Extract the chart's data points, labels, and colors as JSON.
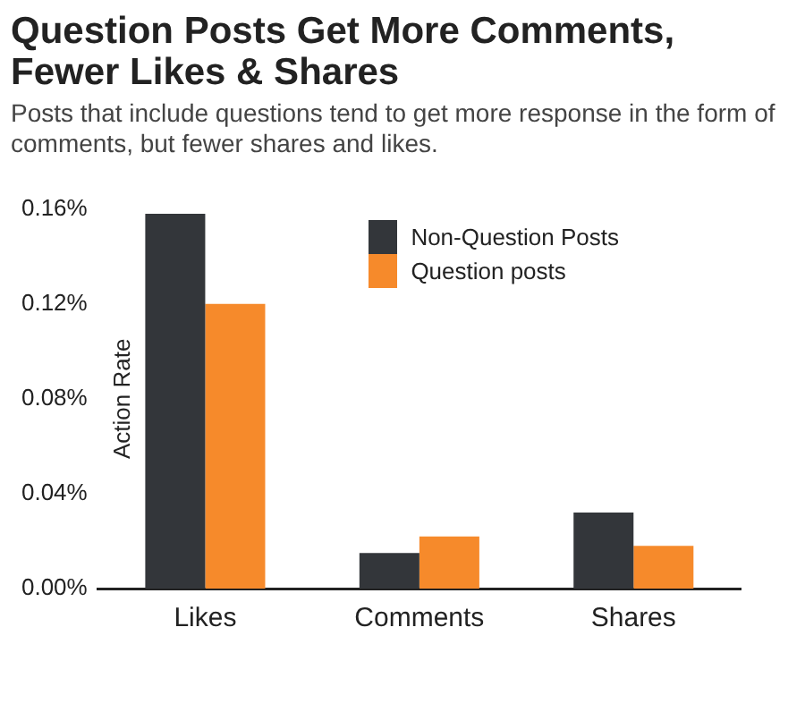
{
  "chart_data": {
    "type": "bar",
    "title": "Question Posts Get More Comments, Fewer Likes & Shares",
    "subtitle": "Posts that include questions tend to get more response in the form of comments, but fewer shares and likes.",
    "ylabel": "Action Rate",
    "categories": [
      "Likes",
      "Comments",
      "Shares"
    ],
    "series": [
      {
        "name": "Non-Question Posts",
        "color": "#33363a",
        "values": [
          0.158,
          0.015,
          0.032
        ]
      },
      {
        "name": "Question posts",
        "color": "#f68a2b",
        "values": [
          0.12,
          0.022,
          0.018
        ]
      }
    ],
    "ylim": [
      0,
      0.16
    ],
    "yticks": [
      {
        "value": 0,
        "label": "0.00%"
      },
      {
        "value": 0.04,
        "label": "0.04%"
      },
      {
        "value": 0.08,
        "label": "0.08%"
      },
      {
        "value": 0.12,
        "label": "0.12%"
      },
      {
        "value": 0.16,
        "label": "0.16%"
      }
    ],
    "grid": false,
    "legend": "top right"
  }
}
